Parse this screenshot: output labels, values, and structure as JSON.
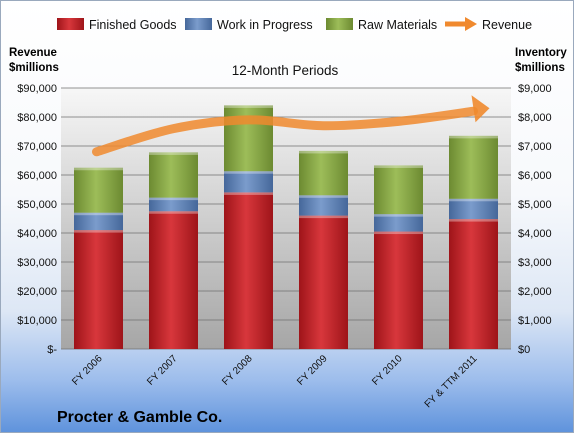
{
  "chart_data": {
    "type": "bar",
    "stacked": true,
    "company": "Procter & Gamble Co.",
    "subtitle": "12-Month Periods",
    "ylabel_left": [
      "Revenue",
      "$millions"
    ],
    "ylabel_right": [
      "Inventory",
      "$millions"
    ],
    "categories": [
      "FY 2006",
      "FY 2007",
      "FY 2008",
      "FY 2009",
      "FY 2010",
      "FY & TTM 2011"
    ],
    "series": [
      {
        "name": "Finished Goods",
        "axis": "right",
        "color": "#c0262b",
        "values": [
          4100,
          4750,
          5400,
          4600,
          4050,
          4480
        ]
      },
      {
        "name": "Work in Progress",
        "axis": "right",
        "color": "#5b7fb5",
        "values": [
          600,
          470,
          730,
          700,
          600,
          700
        ]
      },
      {
        "name": "Raw Materials",
        "axis": "right",
        "color": "#8aab45",
        "values": [
          1550,
          1560,
          2270,
          1530,
          1680,
          2170
        ]
      }
    ],
    "line_series": {
      "name": "Revenue",
      "axis": "left",
      "color": "#f0892e",
      "values": [
        68000,
        76000,
        79000,
        77000,
        78500,
        82000
      ]
    },
    "left_axis": {
      "min": 0,
      "max": 90000,
      "ticks": [
        "$-",
        "$10,000",
        "$20,000",
        "$30,000",
        "$40,000",
        "$50,000",
        "$60,000",
        "$70,000",
        "$80,000",
        "$90,000"
      ]
    },
    "right_axis": {
      "min": 0,
      "max": 9000,
      "ticks": [
        "$0",
        "$1,000",
        "$2,000",
        "$3,000",
        "$4,000",
        "$5,000",
        "$6,000",
        "$7,000",
        "$8,000",
        "$9,000"
      ]
    },
    "legend_position": "top",
    "grid": true
  }
}
